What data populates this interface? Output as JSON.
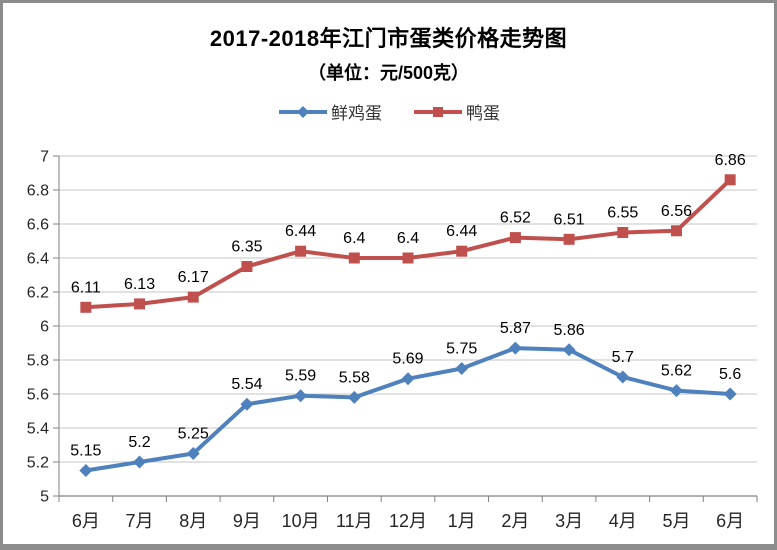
{
  "chart_data": {
    "type": "line",
    "title": "2017-2018年江门市蛋类价格走势图",
    "subtitle": "（单位：元/500克）",
    "categories": [
      "6月",
      "7月",
      "8月",
      "9月",
      "10月",
      "11月",
      "12月",
      "1月",
      "2月",
      "3月",
      "4月",
      "5月",
      "6月"
    ],
    "series": [
      {
        "name": "鲜鸡蛋",
        "color": "#4F81BD",
        "marker": "diamond",
        "values": [
          5.15,
          5.2,
          5.25,
          5.54,
          5.59,
          5.58,
          5.69,
          5.75,
          5.87,
          5.86,
          5.7,
          5.62,
          5.6
        ]
      },
      {
        "name": "鸭蛋",
        "color": "#C0504D",
        "marker": "square",
        "values": [
          6.11,
          6.13,
          6.17,
          6.35,
          6.44,
          6.4,
          6.4,
          6.44,
          6.52,
          6.51,
          6.55,
          6.56,
          6.86
        ]
      }
    ],
    "ylim": [
      5,
      7
    ],
    "ytick_step": 0.2,
    "grid": true,
    "data_labels": true,
    "legend_position": "top",
    "axis_color": "#808080",
    "grid_color": "#C6C6C6",
    "label_color": "#000000"
  }
}
